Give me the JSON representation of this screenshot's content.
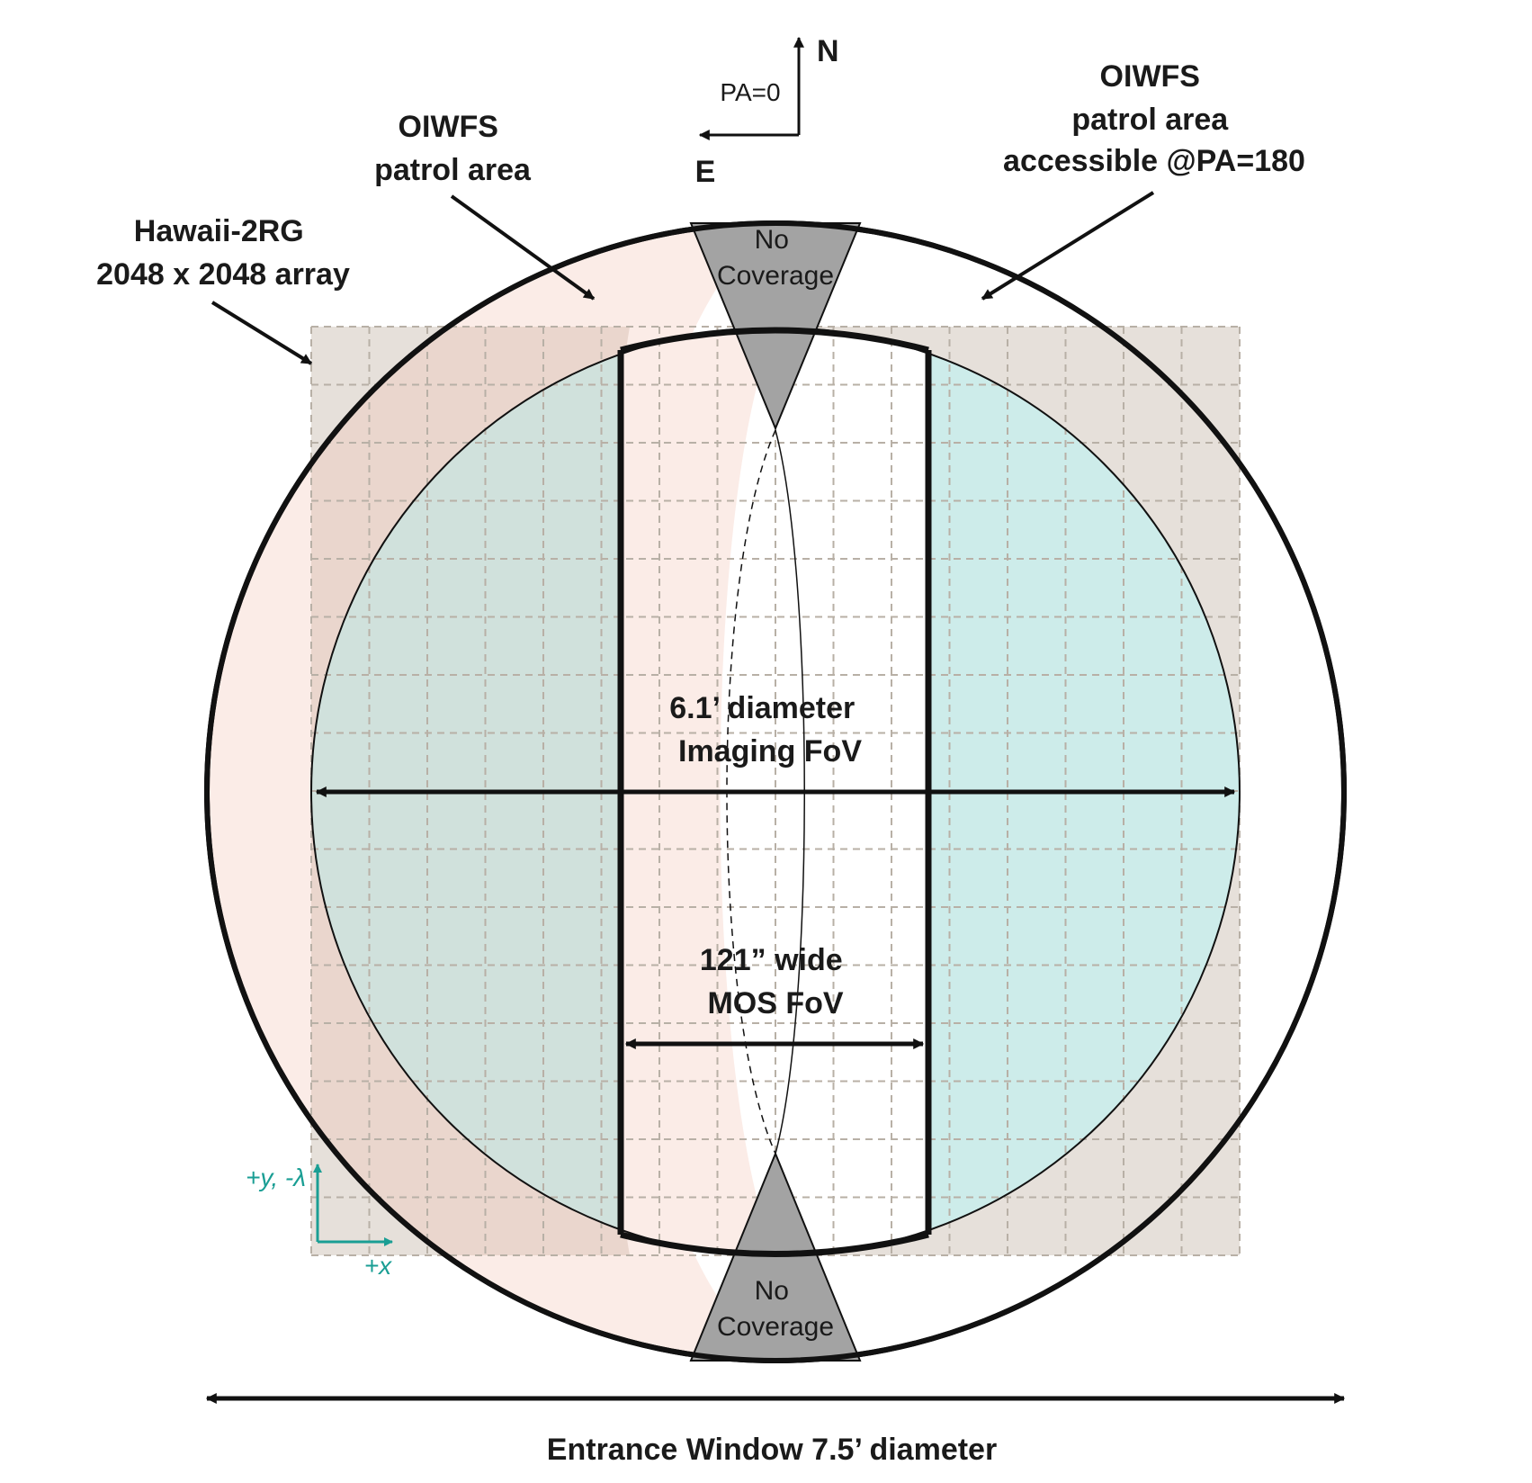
{
  "colors": {
    "patrol_area": "#fbece7",
    "detector": "#e6e0da",
    "detector_overlap": "#e6d2c8",
    "imaging_left": "#d0e1dc",
    "imaging_right": "#cdecea",
    "no_coverage": "#a3a3a3",
    "axis_teal": "#1a9e94",
    "stroke": "#111111"
  },
  "compass": {
    "north": "N",
    "east": "E",
    "pa": "PA=0"
  },
  "labels": {
    "oiwfs_left": [
      "OIWFS",
      "patrol area"
    ],
    "oiwfs_right": [
      "OIWFS",
      "patrol area",
      "accessible @PA=180"
    ],
    "detector": [
      "Hawaii-2RG",
      "2048 x 2048 array"
    ],
    "no_coverage_top": [
      "No",
      "Coverage"
    ],
    "no_coverage_bottom": [
      "No",
      "Coverage"
    ],
    "imaging_fov": [
      "6.1’ diameter",
      "Imaging FoV"
    ],
    "mos_fov": [
      "121” wide",
      "MOS FoV"
    ],
    "entrance_window": "Entrance Window 7.5’ diameter"
  },
  "detector_axes": {
    "y_label": "+y, -λ",
    "x_label": "+x"
  }
}
